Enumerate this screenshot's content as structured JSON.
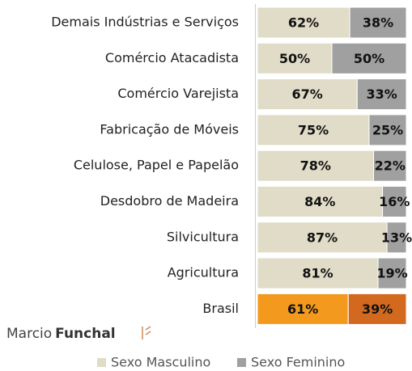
{
  "chart_data": {
    "type": "stacked_bar_horizontal",
    "categories": [
      "Demais Indústrias e Serviços",
      "Comércio Atacadista",
      "Comércio Varejista",
      "Fabricação de Móveis",
      "Celulose, Papel e Papelão",
      "Desdobro de Madeira",
      "Silvicultura",
      "Agricultura",
      "Brasil"
    ],
    "series": [
      {
        "name": "Sexo Masculino",
        "color": "#e0dcc8",
        "colors": [
          "#e0dcc8",
          "#e0dcc8",
          "#e0dcc8",
          "#e0dcc8",
          "#e0dcc8",
          "#e0dcc8",
          "#e0dcc8",
          "#e0dcc8",
          "#f39a1e"
        ],
        "values": [
          62,
          50,
          67,
          75,
          78,
          84,
          87,
          81,
          61
        ],
        "value_labels": [
          "62%",
          "50%",
          "67%",
          "75%",
          "78%",
          "84%",
          "87%",
          "81%",
          "61%"
        ]
      },
      {
        "name": "Sexo Feminino",
        "color": "#a0a0a0",
        "colors": [
          "#a0a0a0",
          "#a0a0a0",
          "#a0a0a0",
          "#a0a0a0",
          "#a0a0a0",
          "#a0a0a0",
          "#a0a0a0",
          "#a0a0a0",
          "#d2691e"
        ],
        "values": [
          38,
          50,
          33,
          25,
          22,
          16,
          13,
          19,
          39
        ],
        "value_labels": [
          "38%",
          "50%",
          "33%",
          "25%",
          "22%",
          "16%",
          "13%",
          "19%",
          "39%"
        ]
      }
    ],
    "xlim": [
      0,
      100
    ],
    "legend": "bottom"
  },
  "logo": [
    "Marcio",
    "Funchal"
  ]
}
